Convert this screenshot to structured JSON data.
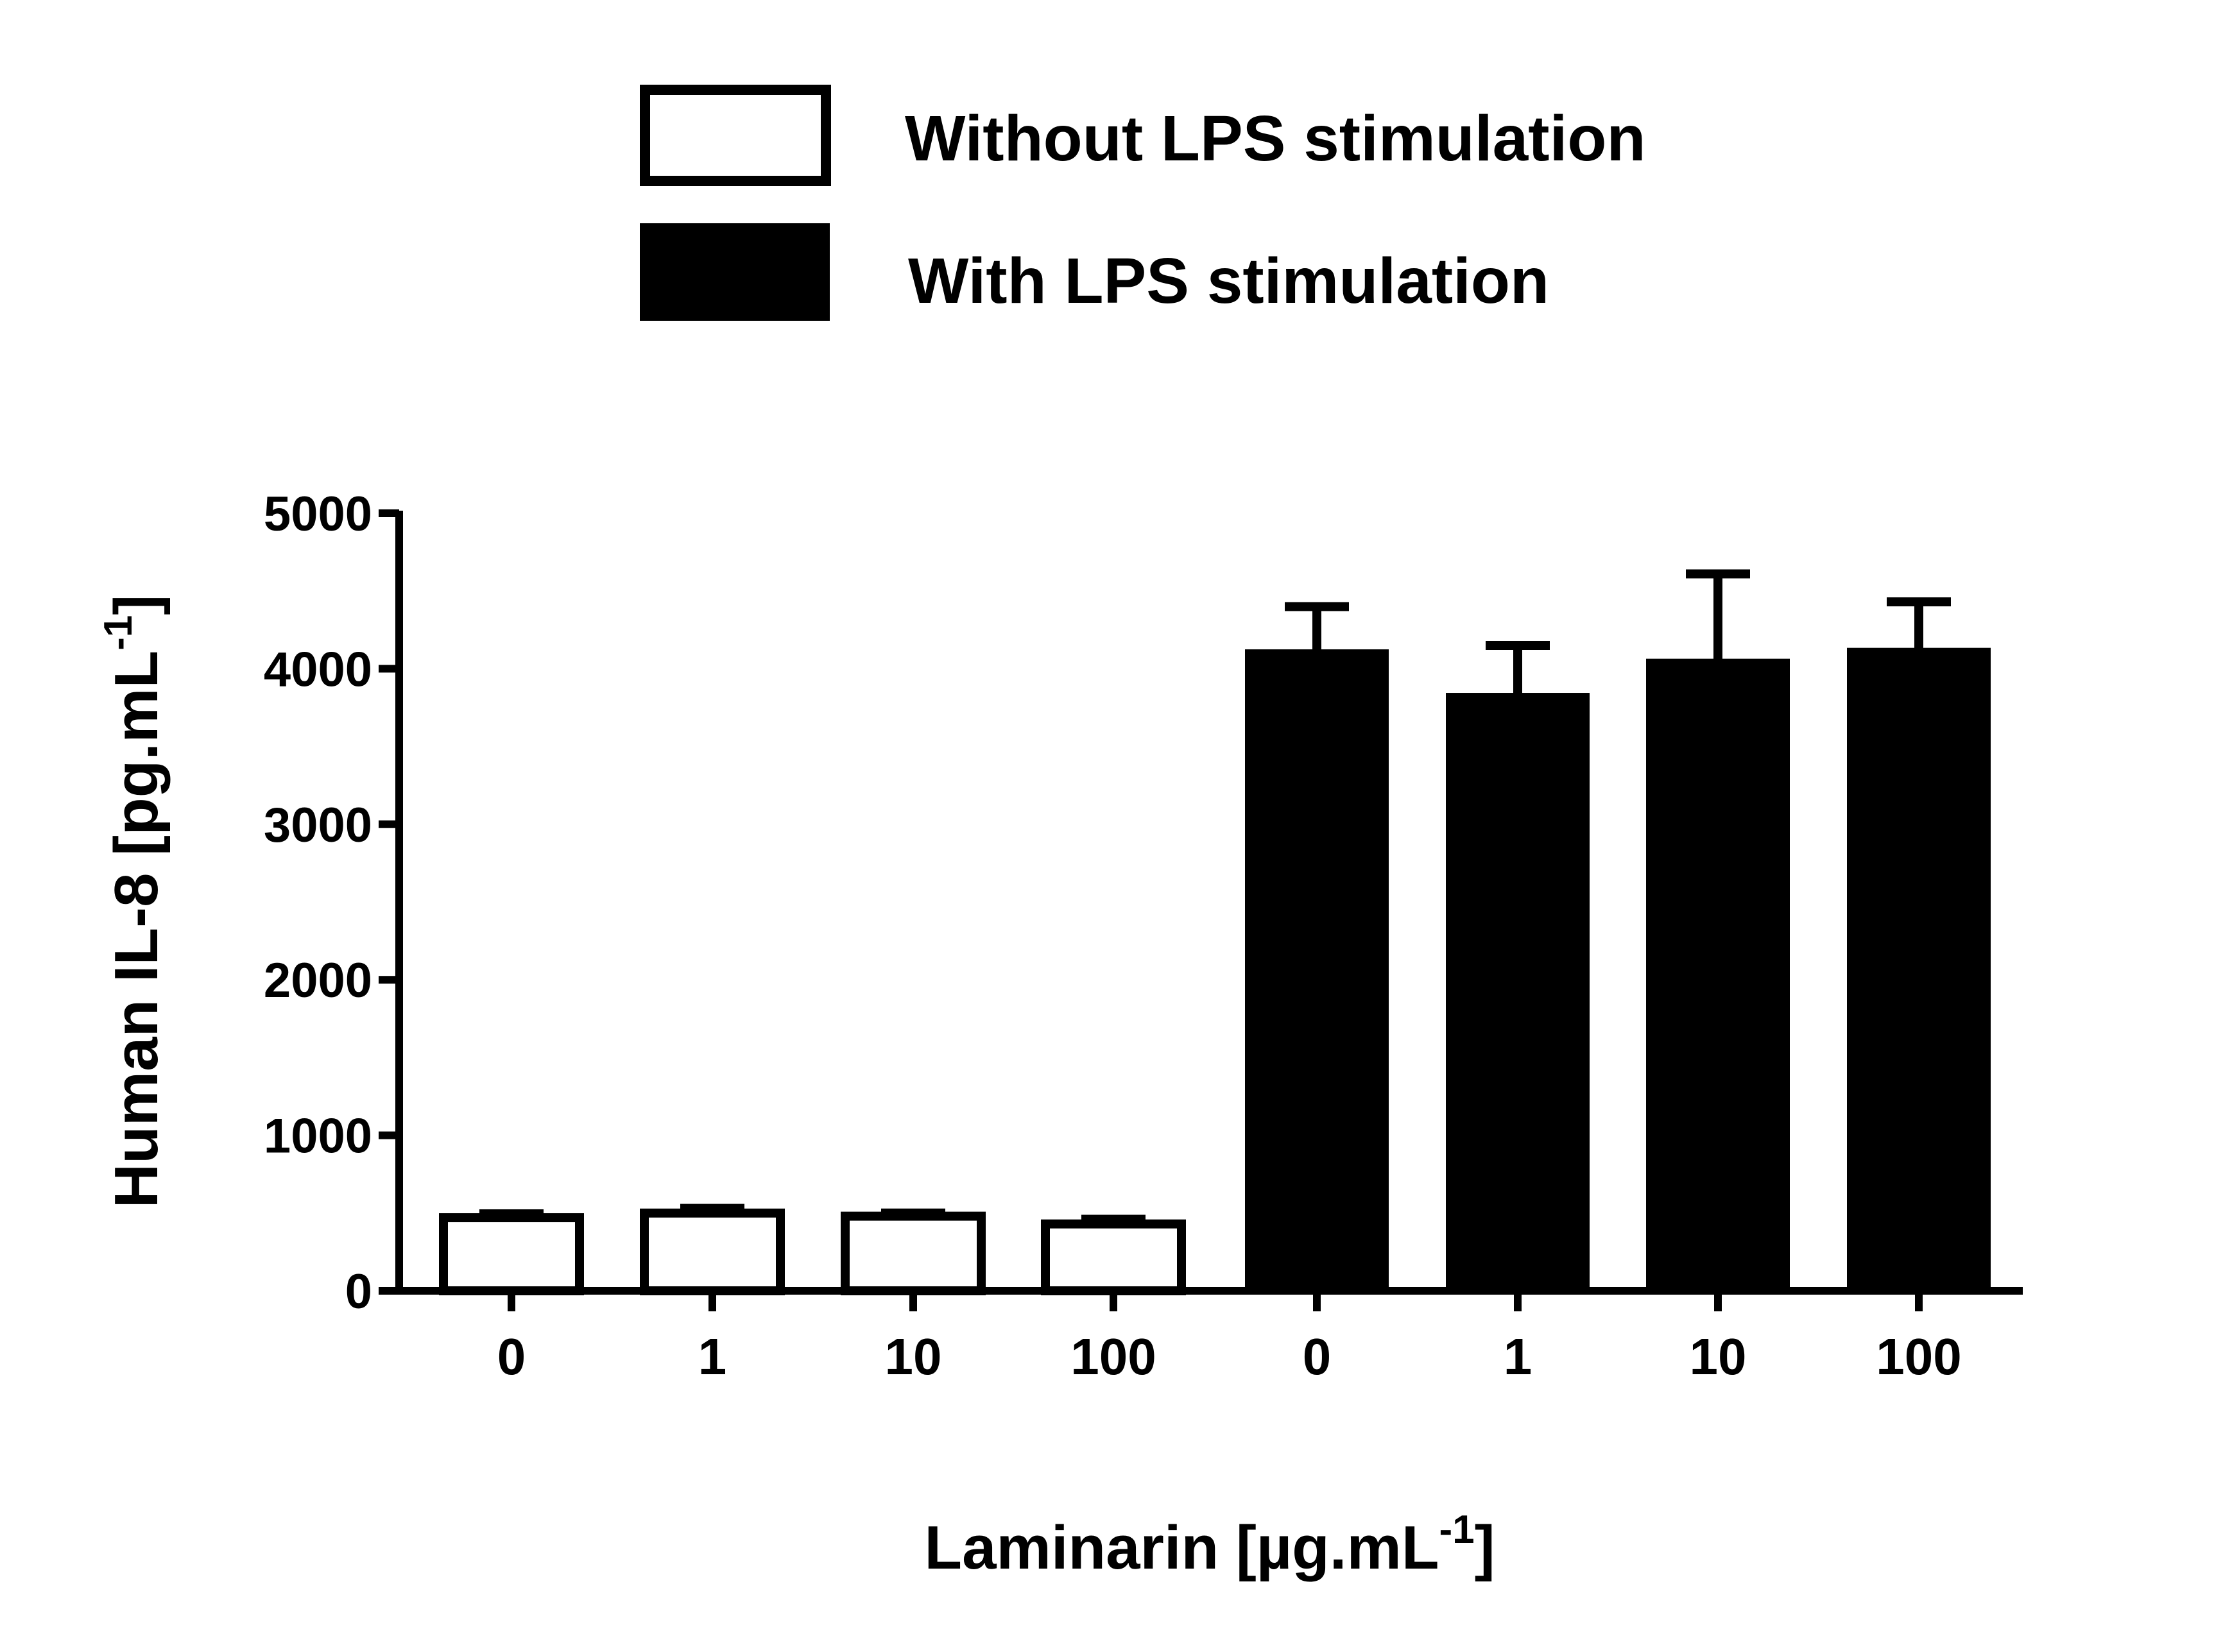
{
  "chart_data": {
    "type": "bar",
    "categories": [
      "0",
      "1",
      "10",
      "100",
      "0",
      "1",
      "10",
      "100"
    ],
    "series": [
      {
        "name": "Without LPS stimulation",
        "fill": "#ffffff",
        "values": [
          470,
          500,
          480,
          430,
          null,
          null,
          null,
          null
        ],
        "errors": [
          25,
          30,
          20,
          30,
          null,
          null,
          null,
          null
        ]
      },
      {
        "name": "With LPS stimulation",
        "fill": "#000000",
        "values": [
          null,
          null,
          null,
          null,
          4100,
          3820,
          4040,
          4110
        ],
        "errors": [
          null,
          null,
          null,
          null,
          300,
          330,
          570,
          320
        ]
      }
    ],
    "xlabel": "Laminarin [µg.mL",
    "xlabel_sup": "-1",
    "xlabel_tail": "]",
    "ylabel": "Human IL-8 [pg.mL",
    "ylabel_sup": "-1",
    "ylabel_tail": "]",
    "ylim": [
      0,
      5000
    ],
    "yticks": [
      0,
      1000,
      2000,
      3000,
      4000,
      5000
    ],
    "grid": false,
    "legend_position": "top"
  }
}
